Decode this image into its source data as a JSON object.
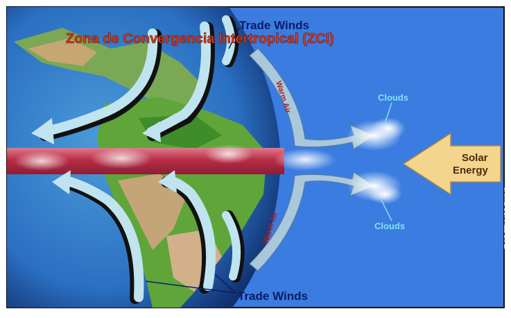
{
  "title": "Zona de Convergencia Intertropical (ZCI)",
  "labels": {
    "trade_winds_top": "Trade Winds",
    "trade_winds_bottom": "Trade Winds",
    "warm_air_top": "Warm Air",
    "warm_air_bottom": "Warm Air",
    "clouds_top": "Clouds",
    "clouds_bottom": "Clouds",
    "solar_line1": "Solar",
    "solar_line2": "Energy",
    "credit": "JAIME SUAREZ DIAZ"
  },
  "colors": {
    "ocean": "#2f68d8",
    "sky": "#3c7de0",
    "land_green": "#5aa83a",
    "land_tan": "#c9a878",
    "band_red": "#c0354c",
    "arrow_fill": "#bfe4f0",
    "solar_arrow": "#f4d58e",
    "title_red": "#e03a1a",
    "label_navy": "#0d1a66",
    "cloud_label": "#7fe2f0"
  }
}
